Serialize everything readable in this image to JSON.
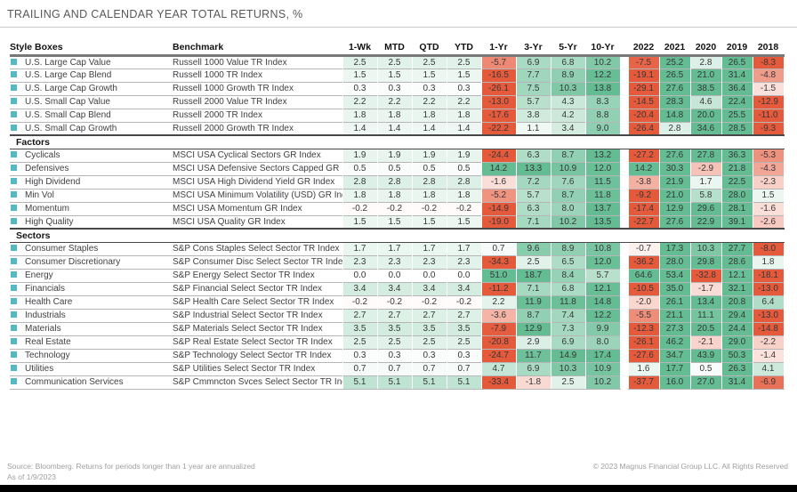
{
  "title": "TRAILING AND CALENDAR YEAR TOTAL RETURNS, %",
  "columns": {
    "style_boxes": "Style Boxes",
    "benchmark": "Benchmark",
    "trailing": [
      "1-Wk",
      "MTD",
      "QTD",
      "YTD",
      "1-Yr",
      "3-Yr",
      "5-Yr",
      "10-Yr"
    ],
    "calendar": [
      "2022",
      "2021",
      "2020",
      "2019",
      "2018"
    ]
  },
  "heatmap": {
    "positive_color": "#63bc92",
    "negative_color": "#e65a3c",
    "positive_cap": 12.5,
    "negative_cap": 8,
    "bullet_color": "#55b9c1"
  },
  "sections": [
    {
      "rows": [
        {
          "label": "U.S. Large Cap Value",
          "benchmark": "Russell 1000 Value TR Index",
          "trailing": [
            "2.5",
            "2.5",
            "2.5",
            "2.5",
            "-5.7",
            "6.9",
            "6.8",
            "10.2"
          ],
          "calendar": [
            "-7.5",
            "25.2",
            "2.8",
            "26.5",
            "-8.3"
          ]
        },
        {
          "label": "U.S. Large Cap Blend",
          "benchmark": "Russell 1000 TR Index",
          "trailing": [
            "1.5",
            "1.5",
            "1.5",
            "1.5",
            "-16.5",
            "7.7",
            "8.9",
            "12.2"
          ],
          "calendar": [
            "-19.1",
            "26.5",
            "21.0",
            "31.4",
            "-4.8"
          ]
        },
        {
          "label": "U.S. Large Cap Growth",
          "benchmark": "Russell 1000 Growth TR Index",
          "trailing": [
            "0.3",
            "0.3",
            "0.3",
            "0.3",
            "-26.1",
            "7.5",
            "10.3",
            "13.8"
          ],
          "calendar": [
            "-29.1",
            "27.6",
            "38.5",
            "36.4",
            "-1.5"
          ]
        },
        {
          "label": "U.S. Small Cap Value",
          "benchmark": "Russell 2000 Value TR Index",
          "trailing": [
            "2.2",
            "2.2",
            "2.2",
            "2.2",
            "-13.0",
            "5.7",
            "4.3",
            "8.3"
          ],
          "calendar": [
            "-14.5",
            "28.3",
            "4.6",
            "22.4",
            "-12.9"
          ]
        },
        {
          "label": "U.S. Small Cap Blend",
          "benchmark": "Russell 2000 TR Index",
          "trailing": [
            "1.8",
            "1.8",
            "1.8",
            "1.8",
            "-17.6",
            "3.8",
            "4.2",
            "8.8"
          ],
          "calendar": [
            "-20.4",
            "14.8",
            "20.0",
            "25.5",
            "-11.0"
          ]
        },
        {
          "label": "U.S. Small Cap Growth",
          "benchmark": "Russell 2000 Growth TR Index",
          "trailing": [
            "1.4",
            "1.4",
            "1.4",
            "1.4",
            "-22.2",
            "1.1",
            "3.4",
            "9.0"
          ],
          "calendar": [
            "-26.4",
            "2.8",
            "34.6",
            "28.5",
            "-9.3"
          ]
        }
      ]
    },
    {
      "title": "Factors",
      "rows": [
        {
          "label": "Cyclicals",
          "benchmark": "MSCI USA Cyclical Sectors GR Index",
          "trailing": [
            "1.9",
            "1.9",
            "1.9",
            "1.9",
            "-24.4",
            "6.3",
            "8.7",
            "13.2"
          ],
          "calendar": [
            "-27.2",
            "27.6",
            "27.8",
            "36.3",
            "-5.3"
          ]
        },
        {
          "label": "Defensives",
          "benchmark": "MSCI USA Defensive Sectors Capped GR Index",
          "trailing": [
            "0.5",
            "0.5",
            "0.5",
            "0.5",
            "14.2",
            "13.3",
            "10.9",
            "12.0"
          ],
          "calendar": [
            "14.2",
            "30.3",
            "-2.9",
            "21.8",
            "-4.3"
          ]
        },
        {
          "label": "High Dividend",
          "benchmark": "MSCI USA High Dividend Yield GR Index",
          "trailing": [
            "2.8",
            "2.8",
            "2.8",
            "2.8",
            "-1.6",
            "7.2",
            "7.6",
            "11.5"
          ],
          "calendar": [
            "-3.8",
            "21.9",
            "1.7",
            "22.5",
            "-2.3"
          ]
        },
        {
          "label": "Min Vol",
          "benchmark": "MSCI USA Minimum Volatility (USD) GR Index",
          "trailing": [
            "1.8",
            "1.8",
            "1.8",
            "1.8",
            "-5.2",
            "5.7",
            "8.7",
            "11.8"
          ],
          "calendar": [
            "-9.2",
            "21.0",
            "5.8",
            "28.0",
            "1.5"
          ]
        },
        {
          "label": "Momentum",
          "benchmark": "MSCI USA Momentum GR Index",
          "trailing": [
            "-0.2",
            "-0.2",
            "-0.2",
            "-0.2",
            "-14.9",
            "6.3",
            "8.0",
            "13.7"
          ],
          "calendar": [
            "-17.4",
            "12.9",
            "29.6",
            "28.1",
            "-1.6"
          ]
        },
        {
          "label": "High Quality",
          "benchmark": "MSCI USA Quality GR Index",
          "trailing": [
            "1.5",
            "1.5",
            "1.5",
            "1.5",
            "-19.0",
            "7.1",
            "10.2",
            "13.5"
          ],
          "calendar": [
            "-22.7",
            "27.6",
            "22.9",
            "39.1",
            "-2.6"
          ]
        }
      ]
    },
    {
      "title": "Sectors",
      "rows": [
        {
          "label": "Consumer Staples",
          "benchmark": "S&P Cons Staples Select Sector TR Index",
          "trailing": [
            "1.7",
            "1.7",
            "1.7",
            "1.7",
            "0.7",
            "9.6",
            "8.9",
            "10.8"
          ],
          "calendar": [
            "-0.7",
            "17.3",
            "10.3",
            "27.7",
            "-8.0"
          ]
        },
        {
          "label": "Consumer Discretionary",
          "benchmark": "S&P Consumer Disc Select Sector TR Index",
          "trailing": [
            "2.3",
            "2.3",
            "2.3",
            "2.3",
            "-34.3",
            "2.5",
            "6.5",
            "12.0"
          ],
          "calendar": [
            "-36.2",
            "28.0",
            "29.8",
            "28.6",
            "1.8"
          ]
        },
        {
          "label": "Energy",
          "benchmark": "S&P Energy Select Sector TR Index",
          "trailing": [
            "0.0",
            "0.0",
            "0.0",
            "0.0",
            "51.0",
            "18.7",
            "8.4",
            "5.7"
          ],
          "calendar": [
            "64.6",
            "53.4",
            "-32.8",
            "12.1",
            "-18.1"
          ]
        },
        {
          "label": "Financials",
          "benchmark": "S&P Financial Select Sector TR Index",
          "trailing": [
            "3.4",
            "3.4",
            "3.4",
            "3.4",
            "-11.2",
            "7.1",
            "6.8",
            "12.1"
          ],
          "calendar": [
            "-10.5",
            "35.0",
            "-1.7",
            "32.1",
            "-13.0"
          ]
        },
        {
          "label": "Health Care",
          "benchmark": "S&P Health Care Select Sector TR Index",
          "trailing": [
            "-0.2",
            "-0.2",
            "-0.2",
            "-0.2",
            "2.2",
            "11.9",
            "11.8",
            "14.8"
          ],
          "calendar": [
            "-2.0",
            "26.1",
            "13.4",
            "20.8",
            "6.4"
          ]
        },
        {
          "label": "Industrials",
          "benchmark": "S&P Industrial Select Sector TR Index",
          "trailing": [
            "2.7",
            "2.7",
            "2.7",
            "2.7",
            "-3.6",
            "8.7",
            "7.4",
            "12.2"
          ],
          "calendar": [
            "-5.5",
            "21.1",
            "11.1",
            "29.4",
            "-13.0"
          ]
        },
        {
          "label": "Materials",
          "benchmark": "S&P Materials Select Sector TR Index",
          "trailing": [
            "3.5",
            "3.5",
            "3.5",
            "3.5",
            "-7.9",
            "12.9",
            "7.3",
            "9.9"
          ],
          "calendar": [
            "-12.3",
            "27.3",
            "20.5",
            "24.4",
            "-14.8"
          ]
        },
        {
          "label": "Real Estate",
          "benchmark": "S&P Real Estate Select Sector TR Index",
          "trailing": [
            "2.5",
            "2.5",
            "2.5",
            "2.5",
            "-20.8",
            "2.9",
            "6.9",
            "8.0"
          ],
          "calendar": [
            "-26.1",
            "46.2",
            "-2.1",
            "29.0",
            "-2.2"
          ]
        },
        {
          "label": "Technology",
          "benchmark": "S&P Technology Select Sector TR Index",
          "trailing": [
            "0.3",
            "0.3",
            "0.3",
            "0.3",
            "-24.7",
            "11.7",
            "14.9",
            "17.4"
          ],
          "calendar": [
            "-27.6",
            "34.7",
            "43.9",
            "50.3",
            "-1.4"
          ]
        },
        {
          "label": "Utilities",
          "benchmark": "S&P Utilities Select Sector TR Index",
          "trailing": [
            "0.7",
            "0.7",
            "0.7",
            "0.7",
            "4.7",
            "6.9",
            "10.3",
            "10.9"
          ],
          "calendar": [
            "1.6",
            "17.7",
            "0.5",
            "26.3",
            "4.1"
          ]
        },
        {
          "label": "Communication Services",
          "benchmark": "S&P Cmmncton Svces Select Sector TR Index",
          "trailing": [
            "5.1",
            "5.1",
            "5.1",
            "5.1",
            "-33.4",
            "-1.8",
            "2.5",
            "10.2"
          ],
          "calendar": [
            "-37.7",
            "16.0",
            "27.0",
            "31.4",
            "-6.9"
          ]
        }
      ]
    }
  ],
  "footer": {
    "source_line1": "Source: Bloomberg. Returns for periods longer than 1 year are annualized",
    "source_line2": "As of 1/9/2023",
    "copyright": "© 2023 Magnus Financial Group LLC. All Rights Reserved"
  }
}
